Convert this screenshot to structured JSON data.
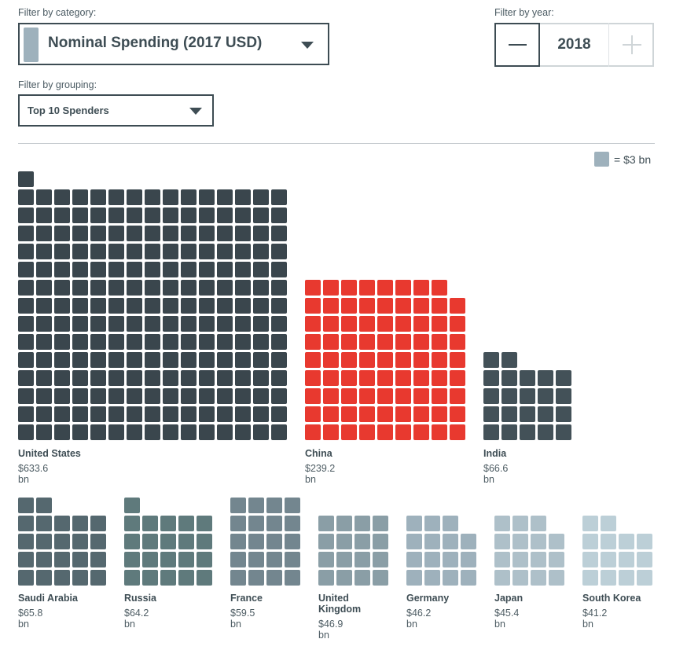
{
  "filters": {
    "category_label": "Filter by category:",
    "category_value": "Nominal Spending (2017 USD)",
    "year_label": "Filter by year:",
    "year_value": "2018",
    "grouping_label": "Filter by grouping:",
    "grouping_value": "Top 10 Spenders"
  },
  "legend": {
    "text": "= $3 bn",
    "unit_value": 3,
    "unit_color": "#9eb1bc"
  },
  "chart_data": {
    "type": "waffle",
    "unit": "$3 bn per square",
    "countries": [
      {
        "name": "United States",
        "value_label": "$633.6 bn",
        "value": 633.6,
        "color": "#3a464d",
        "squares": 211
      },
      {
        "name": "China",
        "value_label": "$239.2 bn",
        "value": 239.2,
        "color": "#e8392f",
        "squares": 80
      },
      {
        "name": "India",
        "value_label": "$66.6 bn",
        "value": 66.6,
        "color": "#435158",
        "squares": 22
      },
      {
        "name": "Saudi Arabia",
        "value_label": "$65.8 bn",
        "value": 65.8,
        "color": "#55686f",
        "squares": 22
      },
      {
        "name": "Russia",
        "value_label": "$64.2 bn",
        "value": 64.2,
        "color": "#5f7a7c",
        "squares": 21
      },
      {
        "name": "France",
        "value_label": "$59.5 bn",
        "value": 59.5,
        "color": "#73868f",
        "squares": 20
      },
      {
        "name": "United Kingdom",
        "value_label": "$46.9 bn",
        "value": 46.9,
        "color": "#8a9ea6",
        "squares": 16
      },
      {
        "name": "Germany",
        "value_label": "$46.2 bn",
        "value": 46.2,
        "color": "#9eb1bc",
        "squares": 15
      },
      {
        "name": "Japan",
        "value_label": "$45.4 bn",
        "value": 45.4,
        "color": "#aec0c9",
        "squares": 15
      },
      {
        "name": "South Korea",
        "value_label": "$41.2 bn",
        "value": 41.2,
        "color": "#bccfd7",
        "squares": 14
      }
    ]
  }
}
